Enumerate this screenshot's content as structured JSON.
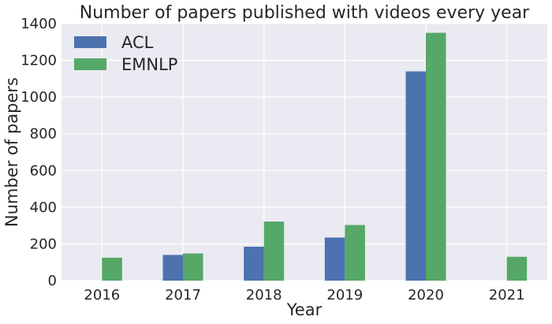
{
  "chart_data": {
    "type": "bar",
    "title": "Number of papers published with videos every year",
    "xlabel": "Year",
    "ylabel": "Number of papers",
    "categories": [
      "2016",
      "2017",
      "2018",
      "2019",
      "2020",
      "2021"
    ],
    "series": [
      {
        "name": "ACL",
        "color": "#4c72b0",
        "values": [
          0,
          140,
          185,
          235,
          1140,
          0
        ]
      },
      {
        "name": "EMNLP",
        "color": "#55a868",
        "values": [
          125,
          148,
          322,
          303,
          1350,
          130
        ]
      }
    ],
    "yticks": [
      0,
      200,
      400,
      600,
      800,
      1000,
      1200,
      1400
    ],
    "ylim": [
      0,
      1400
    ],
    "grid": true,
    "legend_position": "top-left",
    "background_color": "#eaeaf2",
    "grid_color": "#ffffff"
  }
}
